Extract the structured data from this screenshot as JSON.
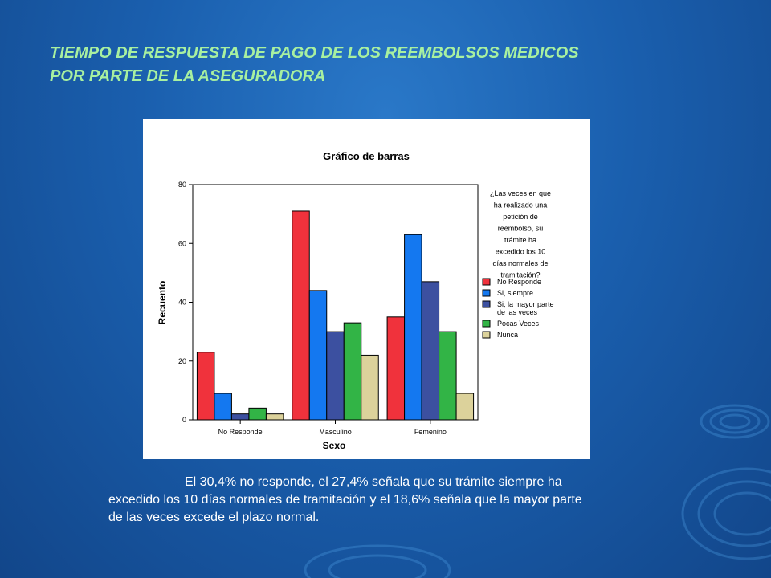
{
  "slide": {
    "title_line1": "TIEMPO DE RESPUESTA DE PAGO DE LOS REEMBOLSOS MEDICOS",
    "title_line2": "POR PARTE DE LA ASEGURADORA",
    "caption_line1": "El  30,4% no responde,  el 27,4% señala que su trámite siempre ha",
    "caption_line2": "excedido los 10 días normales de tramitación  y el 18,6% señala que la mayor parte",
    "caption_line3": "de las veces excede el plazo normal."
  },
  "chart_data": {
    "type": "bar",
    "title": "Gráfico de barras",
    "xlabel": "Sexo",
    "ylabel": "Recuento",
    "ylim": [
      0,
      80
    ],
    "yticks": [
      0,
      20,
      40,
      60,
      80
    ],
    "categories": [
      "No Responde",
      "Masculino",
      "Femenino"
    ],
    "legend_title_lines": [
      "¿Las veces en que",
      "ha realizado una",
      "petición de",
      "reembolso, su",
      "trámite  ha",
      "excedido  los 10",
      "días normales de",
      "tramitación?"
    ],
    "series": [
      {
        "name": "No Responde",
        "color": "#f0323c",
        "values": [
          23,
          71,
          35
        ]
      },
      {
        "name": "Si, siempre.",
        "color": "#1478f0",
        "values": [
          9,
          44,
          63
        ]
      },
      {
        "name": "Si, la mayor parte de las veces",
        "legend_lines": [
          "Si, la mayor parte",
          "de las veces"
        ],
        "color": "#3c50a0",
        "values": [
          2,
          30,
          47
        ]
      },
      {
        "name": "Pocas Veces",
        "color": "#32b446",
        "values": [
          4,
          33,
          30
        ]
      },
      {
        "name": "Nunca",
        "color": "#dcd29b",
        "values": [
          2,
          22,
          9
        ]
      }
    ],
    "legend_position": "right",
    "grid": false
  }
}
